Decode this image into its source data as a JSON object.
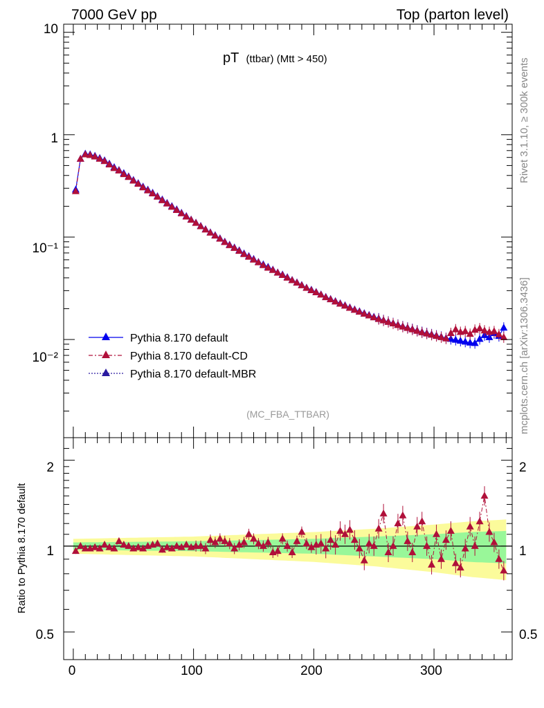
{
  "header": {
    "left": "7000 GeV pp",
    "right": "Top (parton level)"
  },
  "side_labels": {
    "rivet": "Rivet 3.1.10, ≥ 300k events",
    "mcplots": "mcplots.cern.ch [arXiv:1306.3436]"
  },
  "analysis_tag": "(MC_FBA_TTBAR)",
  "colors": {
    "default": "#0000ee",
    "cd": "#b0103a",
    "mbr": "#2a1aa0",
    "band_inner": "#99f799",
    "band_outer": "#fbfb9b"
  },
  "chart_data": [
    {
      "type": "line",
      "title_main": "pT",
      "title_sub": "(ttbar) (Mtt > 450)",
      "xlabel": "",
      "ylabel": "",
      "xlim": [
        -8,
        365
      ],
      "ylim": [
        0.0011,
        12
      ],
      "yscale": "log",
      "y_tick_labels": [
        "10",
        "1",
        "10⁻¹",
        "10⁻²"
      ],
      "x_tick_labels": [
        "0",
        "100",
        "200",
        "300"
      ],
      "legend_position": "bottom-left",
      "legend": [
        "Pythia 8.170 default",
        "Pythia 8.170 default-CD",
        "Pythia 8.170 default-MBR"
      ],
      "series": [
        {
          "name": "Pythia 8.170 default",
          "x": [
            2,
            6,
            10,
            14,
            18,
            22,
            26,
            30,
            34,
            38,
            42,
            46,
            50,
            54,
            58,
            62,
            66,
            70,
            74,
            78,
            82,
            86,
            90,
            94,
            98,
            102,
            106,
            110,
            114,
            118,
            122,
            126,
            130,
            134,
            138,
            142,
            146,
            150,
            154,
            158,
            162,
            166,
            170,
            174,
            178,
            182,
            186,
            190,
            194,
            198,
            202,
            206,
            210,
            214,
            218,
            222,
            226,
            230,
            234,
            238,
            242,
            246,
            250,
            254,
            258,
            262,
            266,
            270,
            274,
            278,
            282,
            286,
            290,
            294,
            298,
            302,
            306,
            310,
            314,
            318,
            322,
            326,
            330,
            334,
            338,
            342,
            346,
            350,
            354,
            358
          ],
          "y": [
            0.29,
            0.58,
            0.65,
            0.64,
            0.62,
            0.59,
            0.56,
            0.52,
            0.48,
            0.45,
            0.42,
            0.39,
            0.36,
            0.335,
            0.31,
            0.29,
            0.27,
            0.25,
            0.232,
            0.215,
            0.2,
            0.186,
            0.172,
            0.16,
            0.148,
            0.138,
            0.128,
            0.119,
            0.111,
            0.104,
            0.097,
            0.09,
            0.084,
            0.079,
            0.074,
            0.069,
            0.065,
            0.061,
            0.057,
            0.054,
            0.051,
            0.048,
            0.045,
            0.043,
            0.0405,
            0.038,
            0.036,
            0.034,
            0.032,
            0.0305,
            0.029,
            0.0275,
            0.026,
            0.0248,
            0.0236,
            0.0225,
            0.0215,
            0.0205,
            0.0196,
            0.0188,
            0.018,
            0.0173,
            0.0166,
            0.016,
            0.0154,
            0.0149,
            0.0144,
            0.0139,
            0.0134,
            0.013,
            0.0126,
            0.0122,
            0.0118,
            0.0115,
            0.0112,
            0.0109,
            0.0106,
            0.0103,
            0.0101,
            0.0099,
            0.0097,
            0.0095,
            0.0093,
            0.0092,
            0.0101,
            0.011,
            0.0105,
            0.0115,
            0.0108,
            0.013
          ]
        },
        {
          "name": "Pythia 8.170 default-CD",
          "x": [
            2,
            6,
            10,
            14,
            18,
            22,
            26,
            30,
            34,
            38,
            42,
            46,
            50,
            54,
            58,
            62,
            66,
            70,
            74,
            78,
            82,
            86,
            90,
            94,
            98,
            102,
            106,
            110,
            114,
            118,
            122,
            126,
            130,
            134,
            138,
            142,
            146,
            150,
            154,
            158,
            162,
            166,
            170,
            174,
            178,
            182,
            186,
            190,
            194,
            198,
            202,
            206,
            210,
            214,
            218,
            222,
            226,
            230,
            234,
            238,
            242,
            246,
            250,
            254,
            258,
            262,
            266,
            270,
            274,
            278,
            282,
            286,
            290,
            294,
            298,
            302,
            306,
            310,
            314,
            318,
            322,
            326,
            330,
            334,
            338,
            342,
            346,
            350,
            354,
            358
          ],
          "y": [
            0.28,
            0.58,
            0.64,
            0.63,
            0.61,
            0.58,
            0.55,
            0.51,
            0.47,
            0.445,
            0.41,
            0.385,
            0.355,
            0.33,
            0.305,
            0.285,
            0.266,
            0.247,
            0.228,
            0.212,
            0.197,
            0.183,
            0.17,
            0.158,
            0.147,
            0.137,
            0.127,
            0.118,
            0.11,
            0.103,
            0.096,
            0.089,
            0.083,
            0.078,
            0.073,
            0.068,
            0.064,
            0.06,
            0.0565,
            0.053,
            0.05,
            0.0475,
            0.0448,
            0.0425,
            0.04,
            0.0378,
            0.0357,
            0.0337,
            0.0318,
            0.0302,
            0.0288,
            0.0273,
            0.0258,
            0.0246,
            0.0234,
            0.0223,
            0.0213,
            0.0203,
            0.0194,
            0.0186,
            0.0178,
            0.0171,
            0.0164,
            0.0158,
            0.0153,
            0.0148,
            0.0143,
            0.0138,
            0.0133,
            0.0129,
            0.0125,
            0.0121,
            0.0117,
            0.0114,
            0.0111,
            0.0108,
            0.0105,
            0.0102,
            0.0115,
            0.0125,
            0.0118,
            0.012,
            0.0113,
            0.0124,
            0.0128,
            0.0122,
            0.0118,
            0.012,
            0.0112,
            0.0105
          ]
        },
        {
          "name": "Pythia 8.170 default-MBR",
          "x": [],
          "y": []
        }
      ]
    },
    {
      "type": "line",
      "ylabel": "Ratio to Pythia 8.170 default",
      "xlim": [
        -8,
        365
      ],
      "ylim": [
        0.4,
        2.4
      ],
      "yscale": "log",
      "y_tick_labels": [
        "2",
        "1",
        "0.5"
      ],
      "reference_line": 1,
      "band_inner_halfwidth": {
        "x": [
          0,
          100,
          200,
          250,
          300,
          330,
          360
        ],
        "value": [
          0.03,
          0.04,
          0.06,
          0.08,
          0.1,
          0.12,
          0.13
        ]
      },
      "band_outer_halfwidth": {
        "x": [
          0,
          100,
          200,
          250,
          300,
          330,
          360
        ],
        "value": [
          0.06,
          0.08,
          0.12,
          0.15,
          0.19,
          0.22,
          0.24
        ]
      },
      "series": [
        {
          "name": "Pythia 8.170 default-CD",
          "x": [
            2,
            6,
            10,
            14,
            18,
            22,
            26,
            30,
            34,
            38,
            42,
            46,
            50,
            54,
            58,
            62,
            66,
            70,
            74,
            78,
            82,
            86,
            90,
            94,
            98,
            102,
            106,
            110,
            114,
            118,
            122,
            126,
            130,
            134,
            138,
            142,
            146,
            150,
            154,
            158,
            162,
            166,
            170,
            174,
            178,
            182,
            186,
            190,
            194,
            198,
            202,
            206,
            210,
            214,
            218,
            222,
            226,
            230,
            234,
            238,
            242,
            246,
            250,
            254,
            258,
            262,
            266,
            270,
            274,
            278,
            282,
            286,
            290,
            294,
            298,
            302,
            306,
            310,
            314,
            318,
            322,
            326,
            330,
            334,
            338,
            342,
            346,
            350,
            354,
            358
          ],
          "y": [
            0.96,
            1.0,
            0.98,
            0.98,
            0.99,
            0.98,
            1.01,
            0.99,
            0.98,
            1.04,
            1.01,
            1.0,
            0.98,
            0.99,
            0.98,
            1.0,
            1.01,
            1.02,
            0.97,
            0.99,
            0.98,
            1.0,
            0.99,
            1.01,
            0.99,
            1.0,
            1.0,
            0.98,
            1.05,
            1.03,
            1.06,
            1.04,
            1.02,
            0.98,
            1.01,
            1.03,
            1.1,
            1.06,
            1.02,
            1.0,
            1.03,
            0.95,
            0.96,
            1.06,
            1.0,
            0.95,
            1.04,
            1.12,
            1.02,
            0.99,
            1.01,
            1.02,
            0.98,
            1.05,
            1.01,
            1.13,
            1.1,
            1.14,
            1.05,
            0.98,
            0.89,
            1.02,
            1.0,
            1.15,
            1.3,
            0.95,
            1.0,
            1.2,
            1.28,
            1.04,
            0.95,
            1.17,
            1.22,
            1.0,
            0.86,
            1.1,
            0.9,
            1.05,
            1.13,
            0.87,
            0.84,
            0.98,
            1.17,
            1.0,
            1.22,
            1.5,
            1.12,
            1.03,
            0.9,
            0.82
          ]
        }
      ]
    }
  ]
}
